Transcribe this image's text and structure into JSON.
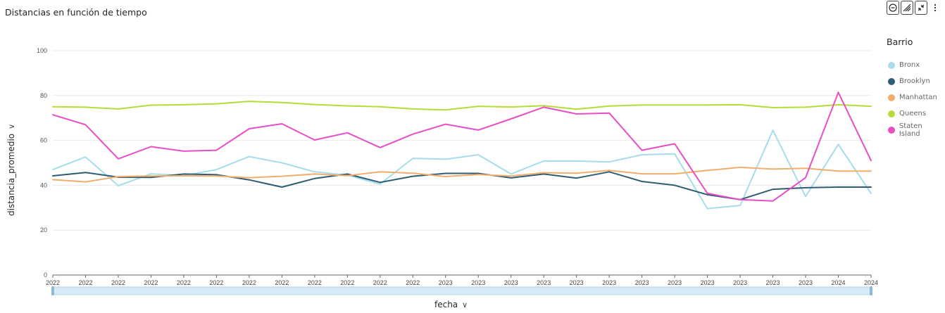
{
  "title": "Distancias en función de tiempo",
  "toolbar": {
    "icons": [
      "filter-icon",
      "drill-icon",
      "focus-icon",
      "more-options-icon"
    ]
  },
  "legend": {
    "title": "Barrio",
    "items": [
      {
        "label": "Bronx",
        "color": "#a6dcec"
      },
      {
        "label": "Brooklyn",
        "color": "#2e5c73"
      },
      {
        "label": "Manhattan",
        "color": "#f3ad6b"
      },
      {
        "label": "Queens",
        "color": "#b5dd3a"
      },
      {
        "label": "Staten Island",
        "color": "#e84dc6"
      }
    ]
  },
  "chart_data": {
    "type": "line",
    "xlabel": "fecha",
    "ylabel": "distancia_promedio",
    "ylim": [
      0,
      100
    ],
    "yticks": [
      0,
      20,
      40,
      60,
      80,
      100
    ],
    "grid": true,
    "legend_position": "right",
    "categories": [
      "2022",
      "2022",
      "2022",
      "2022",
      "2022",
      "2022",
      "2022",
      "2022",
      "2022",
      "2022",
      "2022",
      "2022",
      "2023",
      "2023",
      "2023",
      "2023",
      "2023",
      "2023",
      "2023",
      "2023",
      "2023",
      "2023",
      "2023",
      "2023",
      "2024",
      "2024"
    ],
    "series": [
      {
        "name": "Bronx",
        "color": "#a6dcec",
        "values": [
          47.0,
          52.6,
          39.8,
          45.1,
          44.3,
          47.0,
          52.8,
          50.0,
          46.0,
          44.5,
          40.5,
          52.0,
          51.6,
          53.6,
          45.0,
          50.8,
          50.8,
          50.4,
          53.6,
          54.0,
          29.6,
          31.0,
          64.5,
          35.0,
          58.2,
          36.4
        ]
      },
      {
        "name": "Brooklyn",
        "color": "#2e5c73",
        "values": [
          44.2,
          45.7,
          43.6,
          43.5,
          45.0,
          44.7,
          42.4,
          39.2,
          43.0,
          45.0,
          41.3,
          44.0,
          45.3,
          45.3,
          43.3,
          45.0,
          43.2,
          46.0,
          41.7,
          40.0,
          35.8,
          33.6,
          38.2,
          38.9,
          39.2,
          39.2
        ]
      },
      {
        "name": "Manhattan",
        "color": "#f3ad6b",
        "values": [
          42.5,
          41.5,
          43.9,
          44.1,
          44.2,
          44.1,
          43.4,
          44.0,
          45.0,
          44.3,
          46.0,
          45.4,
          43.9,
          44.8,
          44.1,
          45.6,
          45.4,
          46.6,
          45.1,
          45.1,
          46.6,
          48.0,
          47.2,
          47.6,
          46.3,
          46.3
        ]
      },
      {
        "name": "Queens",
        "color": "#b5dd3a",
        "values": [
          75.0,
          74.8,
          74.0,
          75.7,
          75.9,
          76.3,
          77.4,
          76.9,
          76.0,
          75.4,
          75.0,
          74.0,
          73.6,
          75.2,
          74.9,
          75.5,
          73.9,
          75.3,
          75.8,
          75.8,
          75.8,
          75.9,
          74.6,
          74.8,
          75.9,
          75.2
        ]
      },
      {
        "name": "Staten Island",
        "color": "#e84dc6",
        "values": [
          71.4,
          67.0,
          51.8,
          57.2,
          55.2,
          55.6,
          65.2,
          67.4,
          60.2,
          63.4,
          56.8,
          62.8,
          67.2,
          64.6,
          69.6,
          74.8,
          71.8,
          72.2,
          55.6,
          58.5,
          36.4,
          33.6,
          33.0,
          43.4,
          81.4,
          51.0
        ]
      }
    ]
  }
}
